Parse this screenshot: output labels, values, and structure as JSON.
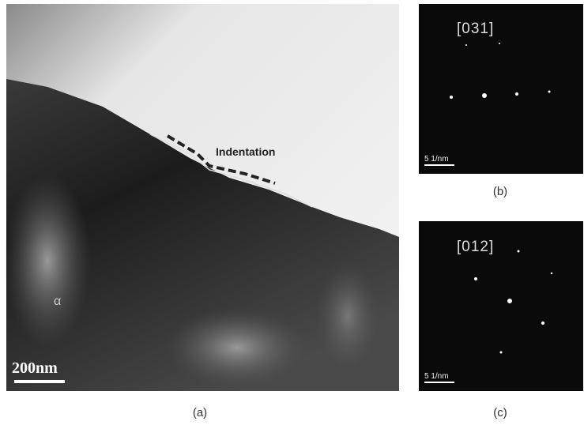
{
  "panel_a": {
    "annotation": "Indentation",
    "phase_label": "α",
    "scale_bar": "200nm",
    "caption": "(a)"
  },
  "panel_b": {
    "zone_axis": "[031]",
    "scale_bar": "5 1/nm",
    "caption": "(b)"
  },
  "panel_c": {
    "zone_axis": "[012]",
    "scale_bar": "5 1/nm",
    "caption": "(c)"
  }
}
